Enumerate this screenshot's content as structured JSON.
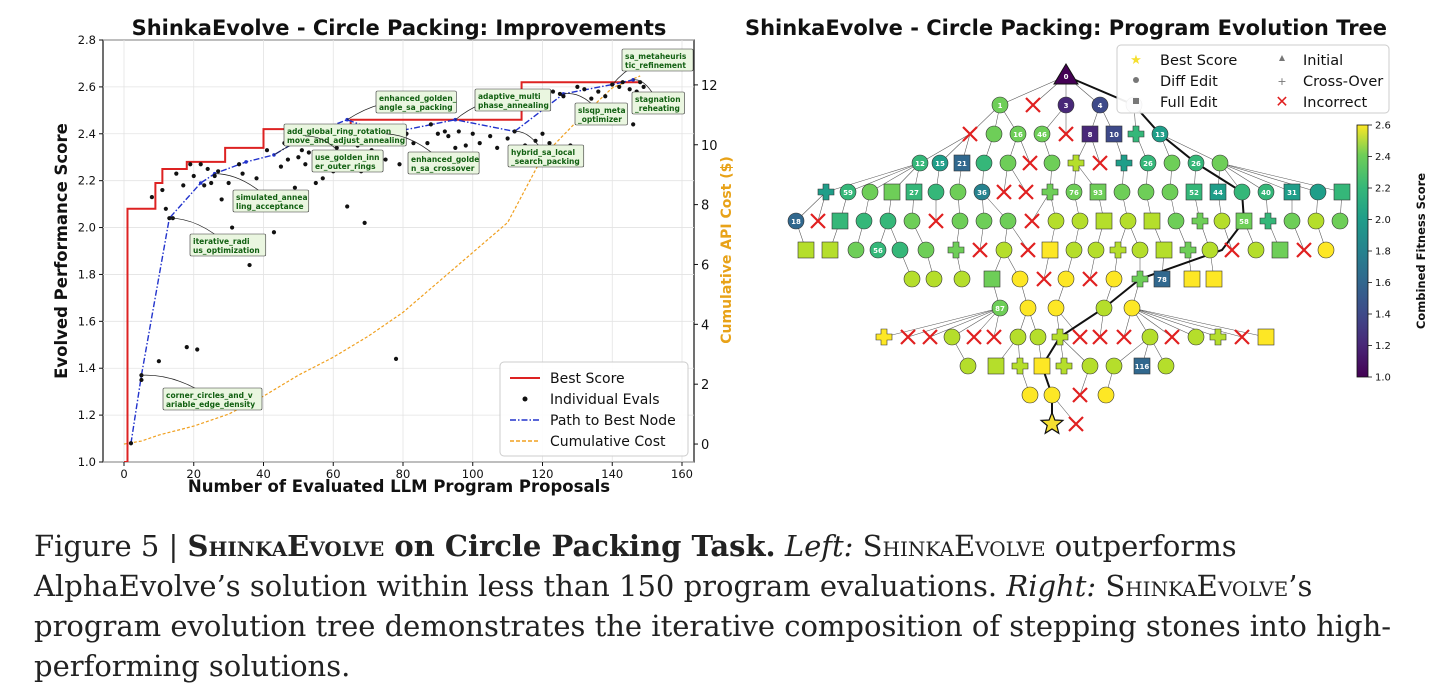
{
  "left_chart": {
    "title": "ShinkaEvolve - Circle Packing: Improvements",
    "xlabel": "Number of Evaluated LLM Program Proposals",
    "ylabel": "Evolved Performance Score",
    "y2label": "Cumulative API Cost ($)",
    "colors": {
      "best": "#dd2222",
      "path": "#2233cc",
      "cost": "#f0a020",
      "evals": "#111111",
      "annot_text": "#126012",
      "annot_bg": "#eaf6e0"
    }
  },
  "chart_data": [
    {
      "type": "scatter",
      "title": "ShinkaEvolve - Circle Packing: Improvements",
      "xlabel": "Number of Evaluated LLM Program Proposals",
      "ylabel": "Evolved Performance Score",
      "y2label": "Cumulative API Cost ($)",
      "xlim": [
        0,
        160
      ],
      "ylim": [
        1.0,
        2.8
      ],
      "y2lim": [
        -0.6,
        13.5
      ],
      "xticks": [
        0,
        20,
        40,
        60,
        80,
        100,
        120,
        140,
        160
      ],
      "yticks": [
        1.0,
        1.2,
        1.4,
        1.6,
        1.8,
        2.0,
        2.2,
        2.4,
        2.6,
        2.8
      ],
      "y2ticks": [
        0,
        2,
        4,
        6,
        8,
        10,
        12
      ],
      "legend": {
        "position": "bottom-right",
        "entries": [
          "Best Score",
          "Individual Evals",
          "Path to Best Node",
          "Cumulative Cost"
        ]
      },
      "series": [
        {
          "name": "Best Score",
          "style": "step",
          "points": [
            [
              0,
              1.0
            ],
            [
              1,
              1.0
            ],
            [
              1,
              2.08
            ],
            [
              9,
              2.08
            ],
            [
              9,
              2.19
            ],
            [
              11,
              2.19
            ],
            [
              11,
              2.25
            ],
            [
              18,
              2.25
            ],
            [
              18,
              2.28
            ],
            [
              29,
              2.28
            ],
            [
              29,
              2.34
            ],
            [
              40,
              2.34
            ],
            [
              40,
              2.42
            ],
            [
              65,
              2.42
            ],
            [
              65,
              2.46
            ],
            [
              114,
              2.46
            ],
            [
              114,
              2.62
            ],
            [
              148,
              2.62
            ]
          ]
        },
        {
          "name": "Path to Best Node",
          "style": "dash-dot",
          "points": [
            [
              2,
              1.08
            ],
            [
              5,
              1.37
            ],
            [
              13,
              2.04
            ],
            [
              22,
              2.19
            ],
            [
              26,
              2.23
            ],
            [
              35,
              2.28
            ],
            [
              43,
              2.31
            ],
            [
              52,
              2.39
            ],
            [
              64,
              2.46
            ],
            [
              75,
              2.4
            ],
            [
              95,
              2.46
            ],
            [
              112,
              2.41
            ],
            [
              126,
              2.57
            ],
            [
              140,
              2.61
            ],
            [
              146,
              2.63
            ]
          ]
        },
        {
          "name": "Cumulative Cost",
          "style": "dashed",
          "points": [
            [
              0,
              0
            ],
            [
              5,
              0.1
            ],
            [
              10,
              0.3
            ],
            [
              20,
              0.6
            ],
            [
              30,
              1.0
            ],
            [
              40,
              1.6
            ],
            [
              50,
              2.3
            ],
            [
              60,
              2.9
            ],
            [
              70,
              3.6
            ],
            [
              80,
              4.4
            ],
            [
              90,
              5.4
            ],
            [
              100,
              6.4
            ],
            [
              110,
              7.4
            ],
            [
              115,
              8.5
            ],
            [
              120,
              9.6
            ],
            [
              130,
              10.8
            ],
            [
              140,
              11.9
            ],
            [
              148,
              12.3
            ]
          ]
        },
        {
          "name": "Individual Evals",
          "style": "markers",
          "points": [
            [
              2,
              1.08
            ],
            [
              5,
              1.35
            ],
            [
              5,
              1.37
            ],
            [
              8,
              2.13
            ],
            [
              10,
              1.43
            ],
            [
              11,
              2.16
            ],
            [
              12,
              2.08
            ],
            [
              13,
              2.04
            ],
            [
              14,
              2.04
            ],
            [
              15,
              2.23
            ],
            [
              17,
              2.18
            ],
            [
              18,
              1.49
            ],
            [
              19,
              2.27
            ],
            [
              20,
              2.22
            ],
            [
              21,
              1.48
            ],
            [
              22,
              2.27
            ],
            [
              23,
              2.18
            ],
            [
              24,
              2.25
            ],
            [
              25,
              2.19
            ],
            [
              26,
              2.22
            ],
            [
              27,
              2.24
            ],
            [
              28,
              2.12
            ],
            [
              30,
              2.19
            ],
            [
              31,
              2.0
            ],
            [
              33,
              2.27
            ],
            [
              34,
              2.23
            ],
            [
              36,
              1.84
            ],
            [
              37,
              2.08
            ],
            [
              38,
              2.21
            ],
            [
              40,
              2.14
            ],
            [
              41,
              2.33
            ],
            [
              43,
              1.98
            ],
            [
              45,
              2.26
            ],
            [
              46,
              2.36
            ],
            [
              47,
              2.29
            ],
            [
              49,
              2.17
            ],
            [
              50,
              2.3
            ],
            [
              51,
              2.33
            ],
            [
              52,
              2.27
            ],
            [
              53,
              2.32
            ],
            [
              55,
              2.19
            ],
            [
              56,
              2.37
            ],
            [
              57,
              2.21
            ],
            [
              58,
              2.3
            ],
            [
              59,
              2.39
            ],
            [
              60,
              2.24
            ],
            [
              61,
              2.34
            ],
            [
              62,
              2.27
            ],
            [
              63,
              2.42
            ],
            [
              64,
              2.09
            ],
            [
              65,
              2.39
            ],
            [
              66,
              2.25
            ],
            [
              67,
              2.35
            ],
            [
              68,
              2.24
            ],
            [
              69,
              2.02
            ],
            [
              70,
              2.4
            ],
            [
              71,
              2.33
            ],
            [
              73,
              2.37
            ],
            [
              75,
              2.29
            ],
            [
              78,
              1.44
            ],
            [
              79,
              2.27
            ],
            [
              81,
              2.4
            ],
            [
              83,
              2.36
            ],
            [
              85,
              2.28
            ],
            [
              87,
              2.36
            ],
            [
              88,
              2.44
            ],
            [
              90,
              2.4
            ],
            [
              92,
              2.41
            ],
            [
              93,
              2.39
            ],
            [
              95,
              2.34
            ],
            [
              96,
              2.41
            ],
            [
              98,
              2.35
            ],
            [
              100,
              2.4
            ],
            [
              102,
              2.36
            ],
            [
              105,
              2.39
            ],
            [
              107,
              2.34
            ],
            [
              110,
              2.38
            ],
            [
              112,
              2.41
            ],
            [
              115,
              2.35
            ],
            [
              117,
              2.27
            ],
            [
              118,
              2.37
            ],
            [
              120,
              2.4
            ],
            [
              122,
              2.36
            ],
            [
              123,
              2.58
            ],
            [
              124,
              2.34
            ],
            [
              125,
              2.57
            ],
            [
              126,
              2.56
            ],
            [
              128,
              2.35
            ],
            [
              130,
              2.6
            ],
            [
              132,
              2.59
            ],
            [
              134,
              2.55
            ],
            [
              136,
              2.58
            ],
            [
              138,
              2.56
            ],
            [
              140,
              2.61
            ],
            [
              142,
              2.6
            ],
            [
              143,
              2.62
            ],
            [
              145,
              2.59
            ],
            [
              146,
              2.44
            ],
            [
              147,
              2.58
            ],
            [
              148,
              2.62
            ],
            [
              149,
              2.6
            ]
          ]
        }
      ],
      "annotations": [
        {
          "text": [
            "corner_circles_and_v",
            "ariable_edge_density"
          ],
          "x": 5,
          "y": 1.37
        },
        {
          "text": [
            "iterative_radi",
            "us_optimization"
          ],
          "x": 13,
          "y": 2.04
        },
        {
          "text": [
            "simulated_annea",
            "ling_acceptance"
          ],
          "x": 26,
          "y": 2.23
        },
        {
          "text": [
            "add_global_ring_rotation",
            "move_and_adjust_annealing"
          ],
          "x": 43,
          "y": 2.31
        },
        {
          "text": [
            "use_golden_inn",
            "er_outer_rings"
          ],
          "x": 52,
          "y": 2.39
        },
        {
          "text": [
            "enhanced_golden_",
            "angle_sa_packing"
          ],
          "x": 64,
          "y": 2.46
        },
        {
          "text": [
            "enhanced_golde",
            "n_sa_crossover"
          ],
          "x": 75,
          "y": 2.4
        },
        {
          "text": [
            "adaptive_multi",
            "phase_annealing"
          ],
          "x": 95,
          "y": 2.46
        },
        {
          "text": [
            "hybrid_sa_local",
            "_search_packing"
          ],
          "x": 112,
          "y": 2.41
        },
        {
          "text": [
            "slsqp_meta",
            "_optimizer"
          ],
          "x": 126,
          "y": 2.57
        },
        {
          "text": [
            "sa_metaheuris",
            "tic_refinement"
          ],
          "x": 140,
          "y": 2.61
        },
        {
          "text": [
            "stagnation",
            "_reheating"
          ],
          "x": 146,
          "y": 2.63
        }
      ]
    },
    {
      "type": "tree",
      "title": "ShinkaEvolve - Circle Packing: Program Evolution Tree",
      "colorbar": {
        "label": "Combined Fitness Score",
        "range": [
          1.0,
          2.6
        ],
        "ticks": [
          1.0,
          1.2,
          1.4,
          1.6,
          1.8,
          2.0,
          2.2,
          2.4,
          2.6
        ]
      },
      "legend": {
        "position": "top",
        "entries": [
          "Best Score",
          "Initial",
          "Diff Edit",
          "Cross-Over",
          "Full Edit",
          "Incorrect"
        ]
      },
      "visible_node_labels": [
        "0",
        "1",
        "3",
        "4",
        "8",
        "10",
        "12",
        "13",
        "15",
        "16",
        "18",
        "21",
        "26",
        "27",
        "31",
        "36",
        "40",
        "44",
        "46",
        "52",
        "56",
        "58",
        "59",
        "76",
        "78",
        "93",
        "116"
      ]
    }
  ],
  "right_chart": {
    "title": "ShinkaEvolve - Circle Packing: Program Evolution Tree",
    "legend": {
      "best": "Best Score",
      "initial": "Initial",
      "diff": "Diff Edit",
      "cross": "Cross-Over",
      "full": "Full Edit",
      "incorrect": "Incorrect"
    },
    "colorbar_label": "Combined Fitness Score",
    "colors": {
      "star": "#f5df30",
      "incorrect": "#e02020"
    }
  },
  "caption": {
    "fig": "Figure 5 | ",
    "name": "ShinkaEvolve",
    "task": " on Circle Packing Task.",
    "left_label": "Left:",
    "sc1": "ShinkaEvolve",
    "text1": " outperforms AlphaEvolve’s solution within less than 150 program evaluations. ",
    "right_label": "Right:",
    "sc2": "ShinkaEvolve",
    "text2": "’s program evolution tree demonstrates the iterative composition of stepping stones into high-performing solutions."
  }
}
